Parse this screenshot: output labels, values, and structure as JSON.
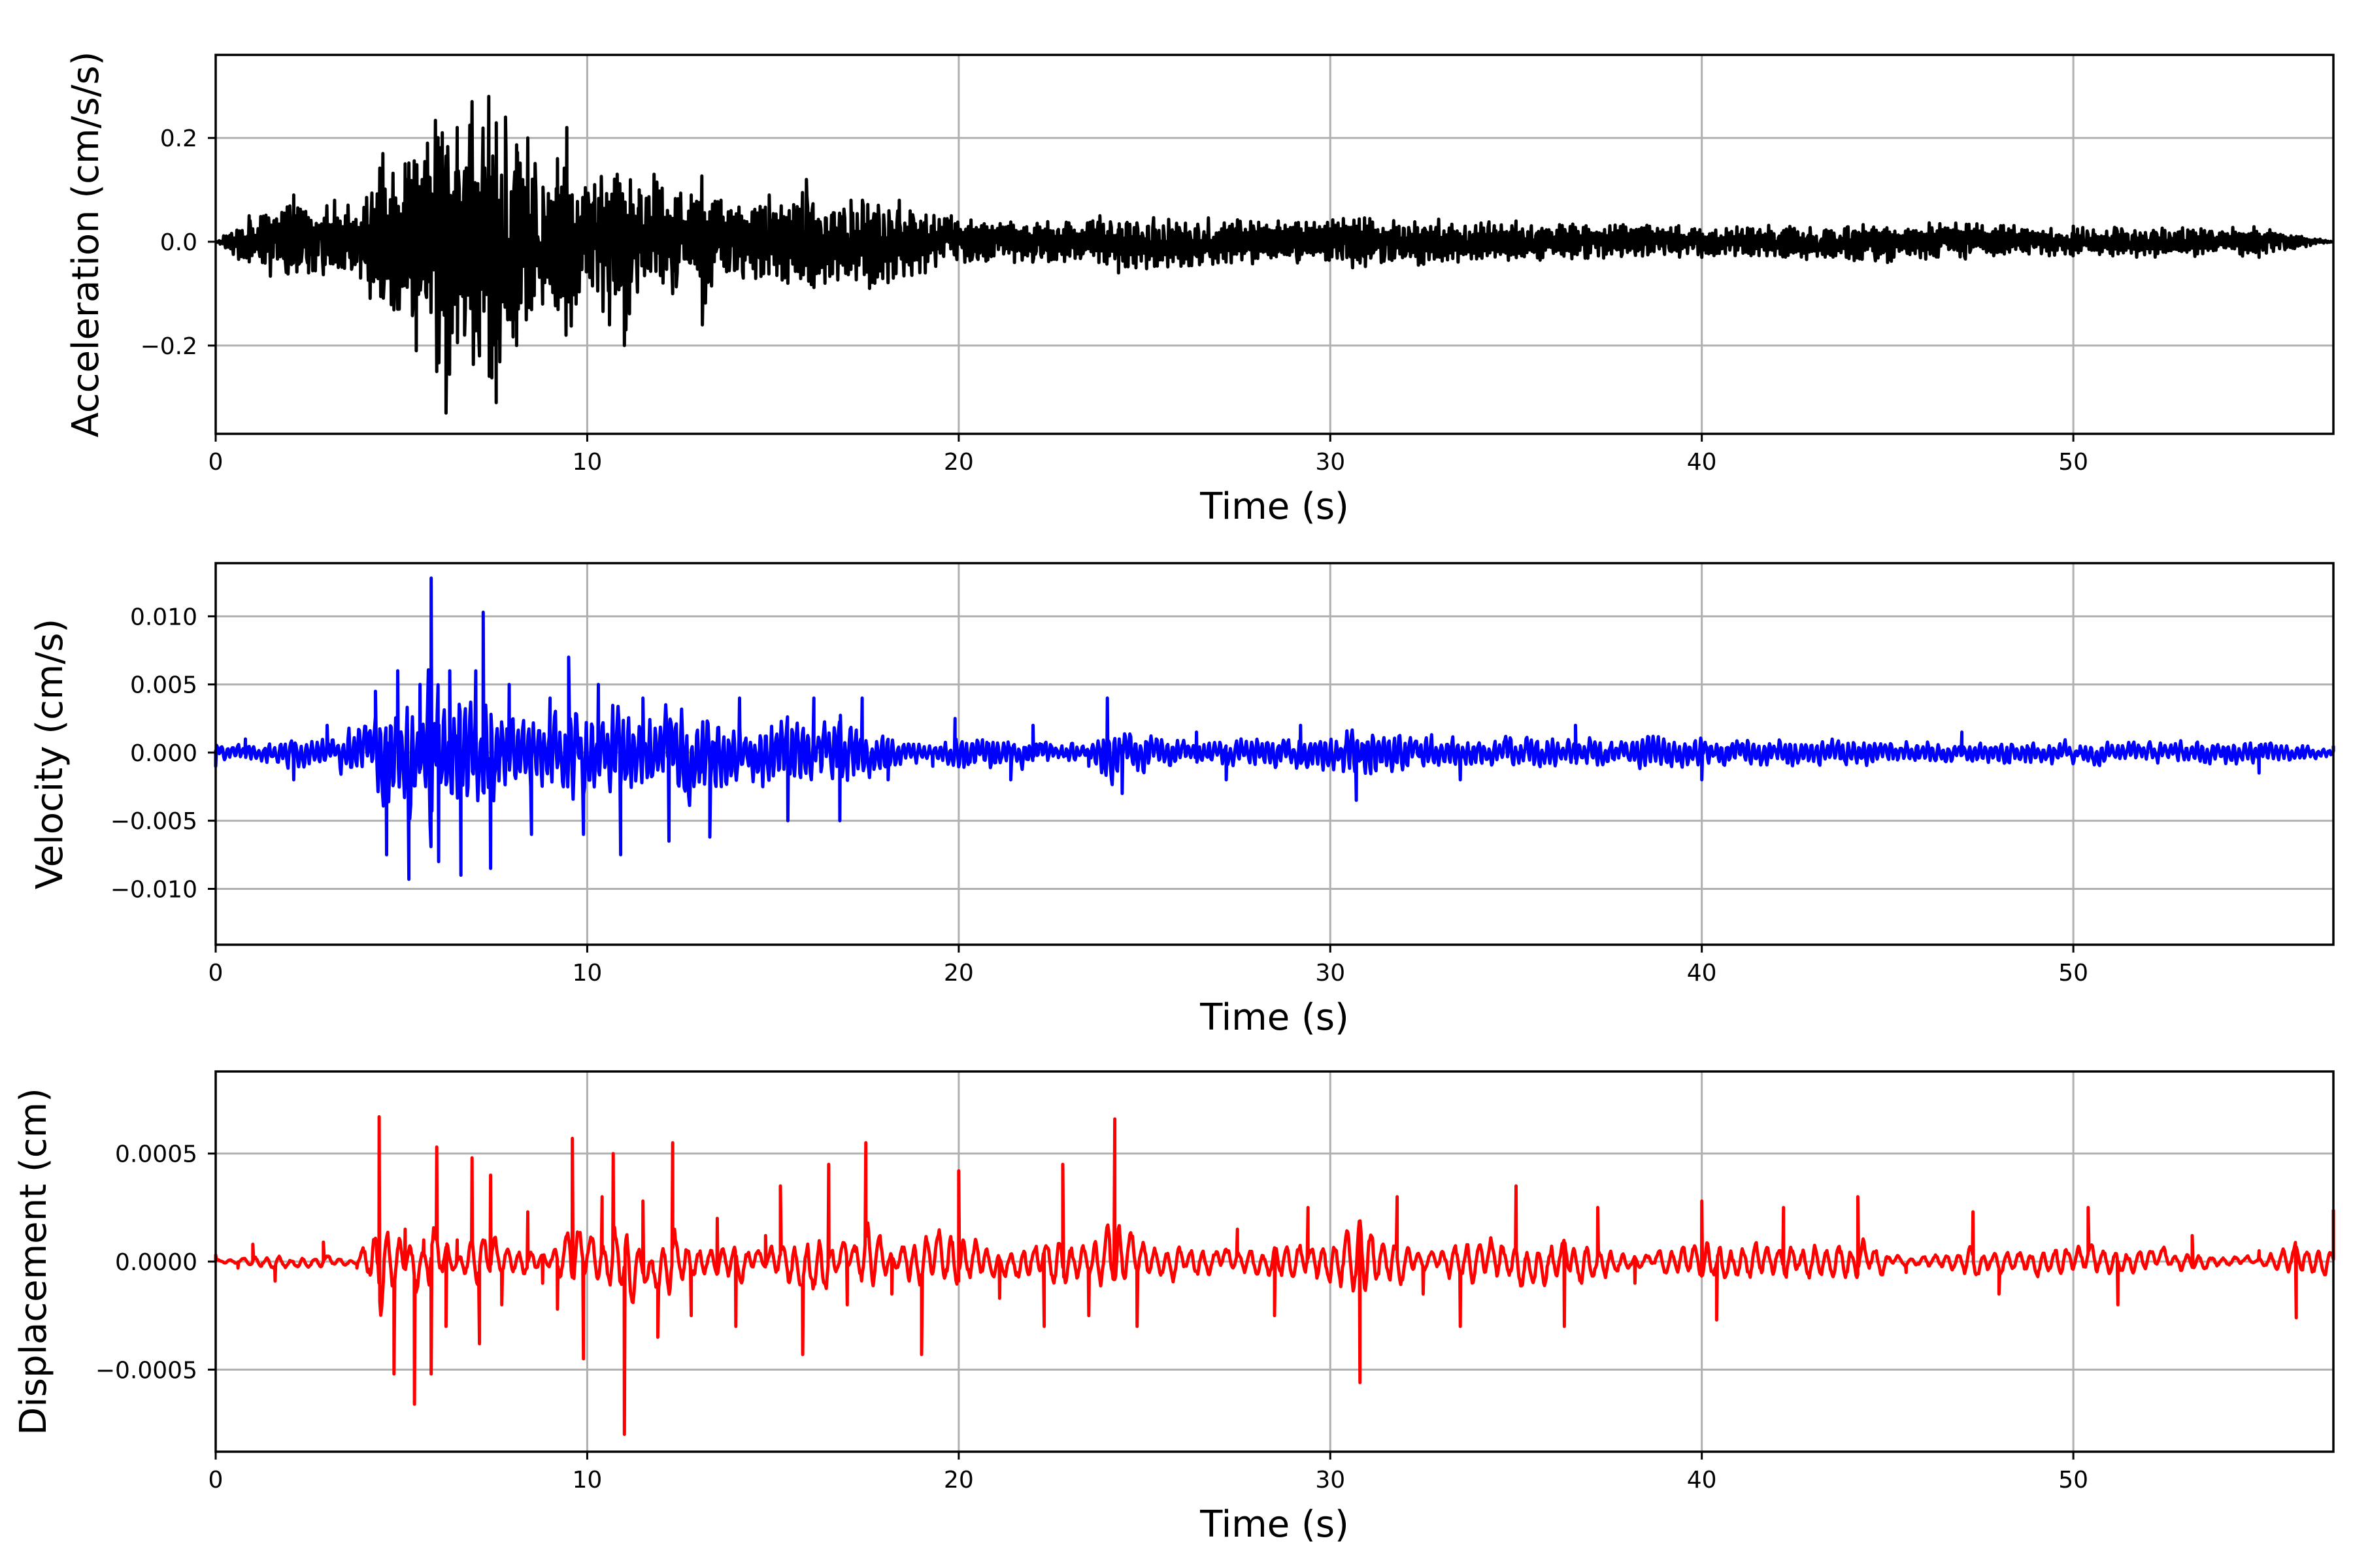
{
  "chart_data": [
    {
      "type": "line",
      "xlabel": "Time (s)",
      "ylabel": "Acceleration (cm/s/s)",
      "xlim": [
        0,
        57
      ],
      "ylim": [
        -0.37,
        0.36
      ],
      "xticks": [
        0,
        10,
        20,
        30,
        40,
        50
      ],
      "xtick_labels": [
        "0",
        "10",
        "20",
        "30",
        "40",
        "50"
      ],
      "yticks": [
        -0.2,
        0.0,
        0.2
      ],
      "ytick_labels": [
        "−0.2",
        "0.0",
        "0.2"
      ],
      "grid": true,
      "color": "#000000",
      "peaks": [
        {
          "t": 0.0,
          "v": 0.0
        },
        {
          "t": 0.9,
          "v": 0.05
        },
        {
          "t": 2.1,
          "v": 0.09
        },
        {
          "t": 2.5,
          "v": -0.06
        },
        {
          "t": 3.2,
          "v": 0.08
        },
        {
          "t": 3.9,
          "v": -0.07
        },
        {
          "t": 4.5,
          "v": 0.17
        },
        {
          "t": 4.9,
          "v": -0.13
        },
        {
          "t": 5.1,
          "v": 0.15
        },
        {
          "t": 5.4,
          "v": -0.21
        },
        {
          "t": 5.7,
          "v": 0.19
        },
        {
          "t": 5.95,
          "v": -0.25
        },
        {
          "t": 6.1,
          "v": 0.21
        },
        {
          "t": 6.2,
          "v": -0.33
        },
        {
          "t": 6.5,
          "v": 0.22
        },
        {
          "t": 6.7,
          "v": -0.18
        },
        {
          "t": 6.9,
          "v": 0.27
        },
        {
          "t": 7.1,
          "v": -0.22
        },
        {
          "t": 7.35,
          "v": 0.28
        },
        {
          "t": 7.55,
          "v": -0.31
        },
        {
          "t": 7.8,
          "v": 0.24
        },
        {
          "t": 8.1,
          "v": -0.2
        },
        {
          "t": 8.4,
          "v": 0.2
        },
        {
          "t": 8.8,
          "v": -0.12
        },
        {
          "t": 9.2,
          "v": 0.16
        },
        {
          "t": 9.45,
          "v": 0.22
        },
        {
          "t": 9.7,
          "v": -0.12
        },
        {
          "t": 10.2,
          "v": 0.11
        },
        {
          "t": 10.6,
          "v": -0.16
        },
        {
          "t": 11.0,
          "v": -0.2
        },
        {
          "t": 11.4,
          "v": 0.1
        },
        {
          "t": 11.8,
          "v": 0.13
        },
        {
          "t": 12.3,
          "v": -0.1
        },
        {
          "t": 12.8,
          "v": 0.09
        },
        {
          "t": 13.1,
          "v": -0.16
        },
        {
          "t": 13.6,
          "v": 0.08
        },
        {
          "t": 14.2,
          "v": -0.07
        },
        {
          "t": 14.9,
          "v": 0.09
        },
        {
          "t": 15.4,
          "v": -0.08
        },
        {
          "t": 15.9,
          "v": 0.12
        },
        {
          "t": 16.4,
          "v": -0.08
        },
        {
          "t": 17.1,
          "v": 0.08
        },
        {
          "t": 17.6,
          "v": -0.09
        },
        {
          "t": 18.4,
          "v": 0.08
        },
        {
          "t": 19.1,
          "v": -0.06
        },
        {
          "t": 19.8,
          "v": 0.05
        },
        {
          "t": 21.5,
          "v": -0.04
        },
        {
          "t": 23.8,
          "v": 0.05
        },
        {
          "t": 24.3,
          "v": -0.06
        },
        {
          "t": 28.6,
          "v": 0.04
        },
        {
          "t": 30.6,
          "v": -0.05
        },
        {
          "t": 35.0,
          "v": 0.04
        },
        {
          "t": 40.0,
          "v": -0.03
        },
        {
          "t": 45.0,
          "v": -0.04
        },
        {
          "t": 50.0,
          "v": 0.03
        },
        {
          "t": 55.0,
          "v": -0.03
        },
        {
          "t": 57.0,
          "v": 0.0
        }
      ]
    },
    {
      "type": "line",
      "xlabel": "Time (s)",
      "ylabel": "Velocity (cm/s)",
      "xlim": [
        0,
        57
      ],
      "ylim": [
        -0.0141,
        0.0139
      ],
      "xticks": [
        0,
        10,
        20,
        30,
        40,
        50
      ],
      "xtick_labels": [
        "0",
        "10",
        "20",
        "30",
        "40",
        "50"
      ],
      "yticks": [
        -0.01,
        -0.005,
        0.0,
        0.005,
        0.01
      ],
      "ytick_labels": [
        "−0.010",
        "−0.005",
        "0.000",
        "0.005",
        "0.010"
      ],
      "grid": true,
      "color": "#0000ff",
      "peaks": [
        {
          "t": 0.0,
          "v": -0.001
        },
        {
          "t": 0.8,
          "v": 0.001
        },
        {
          "t": 2.1,
          "v": -0.002
        },
        {
          "t": 3.0,
          "v": 0.002
        },
        {
          "t": 4.3,
          "v": 0.0045
        },
        {
          "t": 4.6,
          "v": -0.0075
        },
        {
          "t": 4.9,
          "v": 0.006
        },
        {
          "t": 5.2,
          "v": -0.0093
        },
        {
          "t": 5.5,
          "v": 0.005
        },
        {
          "t": 5.8,
          "v": 0.0128
        },
        {
          "t": 6.0,
          "v": -0.008
        },
        {
          "t": 6.3,
          "v": 0.006
        },
        {
          "t": 6.6,
          "v": -0.009
        },
        {
          "t": 7.0,
          "v": 0.006
        },
        {
          "t": 7.2,
          "v": 0.0103
        },
        {
          "t": 7.4,
          "v": -0.0085
        },
        {
          "t": 7.9,
          "v": 0.005
        },
        {
          "t": 8.5,
          "v": -0.006
        },
        {
          "t": 9.0,
          "v": 0.004
        },
        {
          "t": 9.5,
          "v": 0.007
        },
        {
          "t": 9.9,
          "v": -0.006
        },
        {
          "t": 10.3,
          "v": 0.005
        },
        {
          "t": 10.9,
          "v": -0.0075
        },
        {
          "t": 11.5,
          "v": 0.004
        },
        {
          "t": 12.2,
          "v": -0.0065
        },
        {
          "t": 13.3,
          "v": -0.0062
        },
        {
          "t": 14.1,
          "v": 0.004
        },
        {
          "t": 15.4,
          "v": -0.005
        },
        {
          "t": 16.1,
          "v": 0.004
        },
        {
          "t": 16.8,
          "v": -0.005
        },
        {
          "t": 17.4,
          "v": 0.004
        },
        {
          "t": 18.1,
          "v": -0.002
        },
        {
          "t": 19.3,
          "v": -0.001
        },
        {
          "t": 19.9,
          "v": 0.0025
        },
        {
          "t": 21.4,
          "v": -0.002
        },
        {
          "t": 22.0,
          "v": 0.002
        },
        {
          "t": 23.5,
          "v": -0.001
        },
        {
          "t": 24.0,
          "v": 0.004
        },
        {
          "t": 24.4,
          "v": -0.003
        },
        {
          "t": 26.4,
          "v": 0.0015
        },
        {
          "t": 27.2,
          "v": -0.002
        },
        {
          "t": 29.2,
          "v": 0.002
        },
        {
          "t": 30.7,
          "v": -0.0035
        },
        {
          "t": 33.5,
          "v": -0.002
        },
        {
          "t": 36.6,
          "v": 0.002
        },
        {
          "t": 40.0,
          "v": -0.002
        },
        {
          "t": 47.0,
          "v": 0.0015
        },
        {
          "t": 55.0,
          "v": -0.0015
        },
        {
          "t": 57.0,
          "v": 0.0005
        }
      ]
    },
    {
      "type": "line",
      "xlabel": "Time (s)",
      "ylabel": "Displacement (cm)",
      "xlim": [
        0,
        57
      ],
      "ylim": [
        -0.00088,
        0.00088
      ],
      "xticks": [
        0,
        10,
        20,
        30,
        40,
        50
      ],
      "xtick_labels": [
        "0",
        "10",
        "20",
        "30",
        "40",
        "50"
      ],
      "yticks": [
        -0.0005,
        0.0,
        0.0005
      ],
      "ytick_labels": [
        "−0.0005",
        "0.0000",
        "0.0005"
      ],
      "grid": true,
      "color": "#ff0000",
      "peaks": [
        {
          "t": 0.0,
          "v": 3e-05
        },
        {
          "t": 0.6,
          "v": -3e-05
        },
        {
          "t": 1.0,
          "v": 8e-05
        },
        {
          "t": 1.6,
          "v": -9e-05
        },
        {
          "t": 2.9,
          "v": 9e-05
        },
        {
          "t": 3.8,
          "v": -3e-05
        },
        {
          "t": 4.4,
          "v": 0.00067
        },
        {
          "t": 4.8,
          "v": -0.00052
        },
        {
          "t": 5.1,
          "v": 0.00015
        },
        {
          "t": 5.35,
          "v": -0.00066
        },
        {
          "t": 5.6,
          "v": 0.0001
        },
        {
          "t": 5.8,
          "v": -0.00052
        },
        {
          "t": 5.95,
          "v": 0.00053
        },
        {
          "t": 6.2,
          "v": -0.0003
        },
        {
          "t": 6.5,
          "v": 0.0001
        },
        {
          "t": 6.9,
          "v": 0.00048
        },
        {
          "t": 7.1,
          "v": -0.00038
        },
        {
          "t": 7.4,
          "v": 0.0004
        },
        {
          "t": 7.7,
          "v": -0.0002
        },
        {
          "t": 8.4,
          "v": 0.00023
        },
        {
          "t": 8.8,
          "v": -0.0001
        },
        {
          "t": 9.2,
          "v": -0.00022
        },
        {
          "t": 9.6,
          "v": 0.00057
        },
        {
          "t": 9.9,
          "v": -0.00045
        },
        {
          "t": 10.4,
          "v": 0.0003
        },
        {
          "t": 10.7,
          "v": 0.0005
        },
        {
          "t": 11.0,
          "v": -0.0008
        },
        {
          "t": 11.5,
          "v": 0.00028
        },
        {
          "t": 11.9,
          "v": -0.00035
        },
        {
          "t": 12.3,
          "v": 0.00055
        },
        {
          "t": 12.8,
          "v": -0.00025
        },
        {
          "t": 13.5,
          "v": 0.0002
        },
        {
          "t": 14.0,
          "v": -0.0003
        },
        {
          "t": 14.8,
          "v": 0.00012
        },
        {
          "t": 15.2,
          "v": 0.00035
        },
        {
          "t": 15.8,
          "v": -0.00043
        },
        {
          "t": 16.5,
          "v": 0.00045
        },
        {
          "t": 17.0,
          "v": -0.0002
        },
        {
          "t": 17.5,
          "v": 0.00055
        },
        {
          "t": 18.2,
          "v": -0.00015
        },
        {
          "t": 19.0,
          "v": -0.00043
        },
        {
          "t": 20.0,
          "v": 0.00042
        },
        {
          "t": 21.1,
          "v": -0.00017
        },
        {
          "t": 22.3,
          "v": -0.0003
        },
        {
          "t": 22.8,
          "v": 0.00045
        },
        {
          "t": 23.5,
          "v": -0.00025
        },
        {
          "t": 24.2,
          "v": 0.00066
        },
        {
          "t": 24.8,
          "v": -0.0003
        },
        {
          "t": 27.5,
          "v": 0.00015
        },
        {
          "t": 28.5,
          "v": -0.00025
        },
        {
          "t": 29.4,
          "v": 0.00025
        },
        {
          "t": 30.8,
          "v": -0.00056
        },
        {
          "t": 31.8,
          "v": 0.0003
        },
        {
          "t": 32.5,
          "v": -0.00015
        },
        {
          "t": 33.5,
          "v": -0.0003
        },
        {
          "t": 35.0,
          "v": 0.00035
        },
        {
          "t": 36.3,
          "v": -0.0003
        },
        {
          "t": 37.2,
          "v": 0.00025
        },
        {
          "t": 38.2,
          "v": -0.0001
        },
        {
          "t": 40.0,
          "v": 0.00028
        },
        {
          "t": 40.4,
          "v": -0.00027
        },
        {
          "t": 42.2,
          "v": 0.00025
        },
        {
          "t": 44.2,
          "v": 0.0003
        },
        {
          "t": 45.5,
          "v": -5e-05
        },
        {
          "t": 47.3,
          "v": 0.00023
        },
        {
          "t": 48.0,
          "v": -0.00015
        },
        {
          "t": 50.4,
          "v": 0.00025
        },
        {
          "t": 51.2,
          "v": -0.0002
        },
        {
          "t": 53.2,
          "v": 0.00012
        },
        {
          "t": 55.0,
          "v": 5e-05
        },
        {
          "t": 56.0,
          "v": -0.00026
        },
        {
          "t": 57.0,
          "v": 0.00024
        }
      ]
    }
  ]
}
